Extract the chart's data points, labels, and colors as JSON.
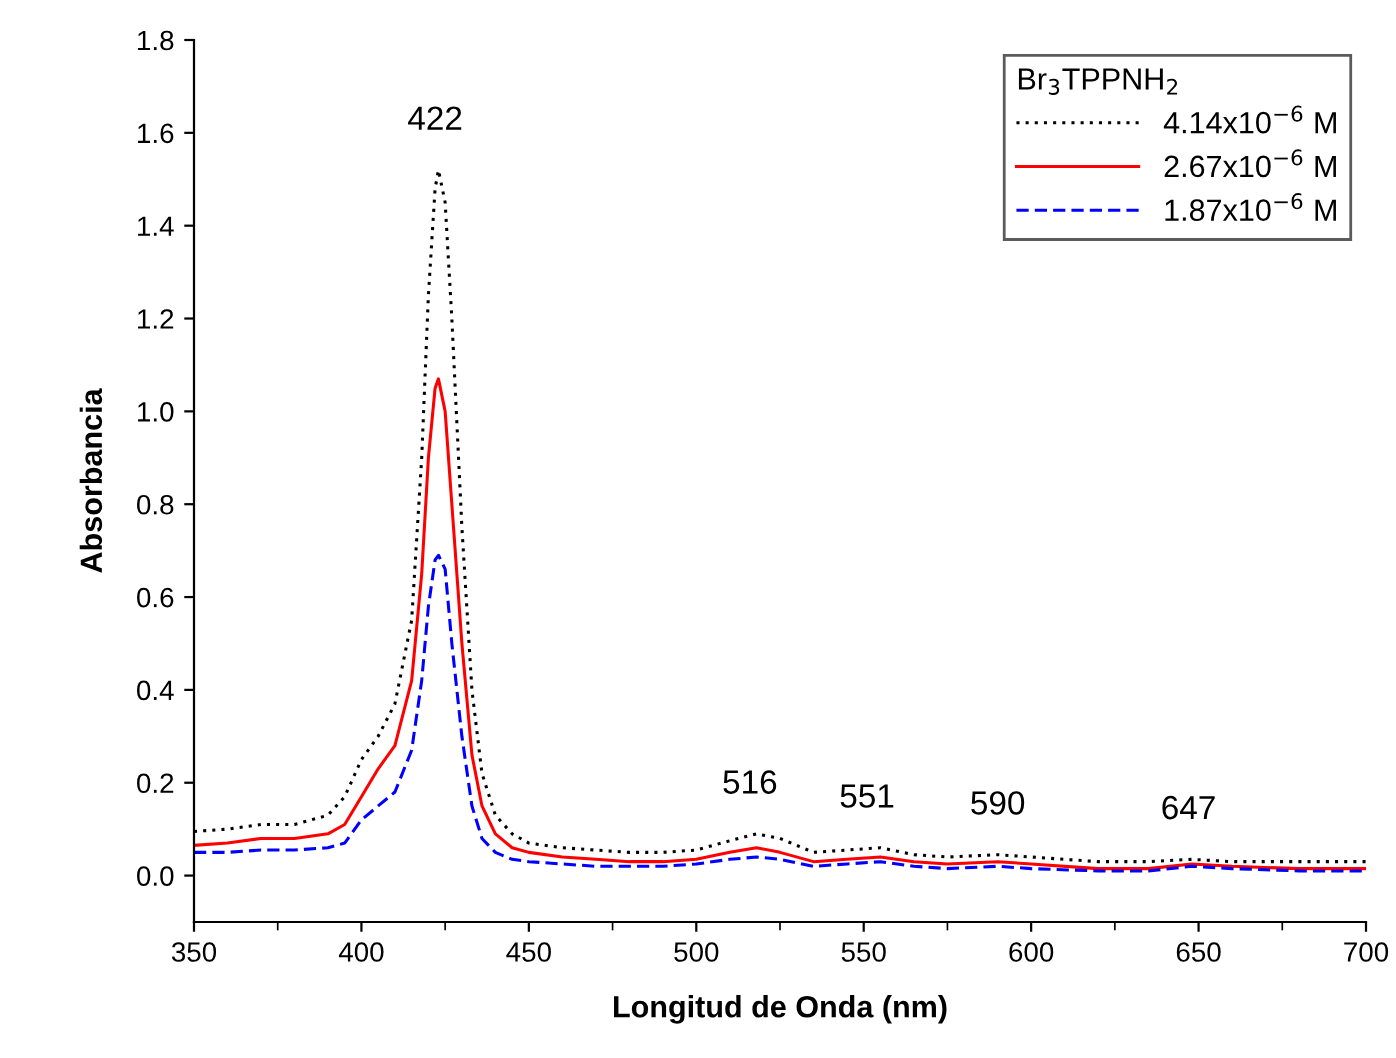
{
  "chart_data": {
    "type": "line",
    "xlabel": "Longitud de Onda (nm)",
    "ylabel": "Absorbancia",
    "legend_title": "Br$_{3}$TPPNH$_{2}$",
    "legend": "top right",
    "grid": false,
    "xlim": [
      350,
      700
    ],
    "xticks": [
      350,
      400,
      450,
      500,
      550,
      600,
      650,
      700
    ],
    "ylim": [
      -0.1,
      1.8
    ],
    "yticks": [
      {
        "value": 0,
        "label": "0.0"
      },
      {
        "value": 0.2,
        "label": "0.2"
      },
      {
        "value": 0.4,
        "label": "0.4"
      },
      {
        "value": 0.6,
        "label": "0.6"
      },
      {
        "value": 0.8,
        "label": "0.8"
      },
      {
        "value": 1.0,
        "label": "1.0"
      },
      {
        "value": 1.2,
        "label": "1.2"
      },
      {
        "value": 1.4,
        "label": "1.4"
      },
      {
        "value": 1.6,
        "label": "1.6"
      },
      {
        "value": 1.8,
        "label": "1.8"
      }
    ],
    "x": [
      350,
      360,
      370,
      380,
      390,
      395,
      400,
      405,
      410,
      415,
      418,
      420,
      422,
      423,
      425,
      427,
      430,
      433,
      436,
      440,
      445,
      450,
      460,
      470,
      480,
      490,
      500,
      510,
      518,
      525,
      535,
      545,
      555,
      565,
      575,
      590,
      600,
      620,
      635,
      648,
      660,
      680,
      700
    ],
    "series": [
      {
        "name": "4.14x10$^{−6}$ M",
        "color": "#000000",
        "line_style": "dotted",
        "values": [
          0.095,
          0.1,
          0.11,
          0.11,
          0.13,
          0.17,
          0.25,
          0.3,
          0.37,
          0.55,
          0.9,
          1.25,
          1.48,
          1.52,
          1.45,
          1.2,
          0.75,
          0.4,
          0.22,
          0.13,
          0.09,
          0.07,
          0.06,
          0.055,
          0.05,
          0.05,
          0.055,
          0.075,
          0.09,
          0.08,
          0.05,
          0.055,
          0.06,
          0.045,
          0.04,
          0.045,
          0.04,
          0.03,
          0.03,
          0.035,
          0.03,
          0.03,
          0.03
        ]
      },
      {
        "name": "2.67x10$^{−6}$ M",
        "color": "#ff0000",
        "line_style": "solid",
        "values": [
          0.065,
          0.07,
          0.08,
          0.08,
          0.09,
          0.11,
          0.17,
          0.23,
          0.28,
          0.42,
          0.65,
          0.9,
          1.05,
          1.07,
          1.0,
          0.8,
          0.5,
          0.26,
          0.15,
          0.09,
          0.06,
          0.05,
          0.04,
          0.035,
          0.03,
          0.03,
          0.035,
          0.05,
          0.06,
          0.05,
          0.03,
          0.035,
          0.04,
          0.03,
          0.025,
          0.03,
          0.025,
          0.015,
          0.015,
          0.025,
          0.02,
          0.015,
          0.015
        ]
      },
      {
        "name": "1.87x10$^{−6}$ M",
        "color": "#0000ff",
        "line_style": "dashed",
        "values": [
          0.05,
          0.05,
          0.055,
          0.055,
          0.06,
          0.07,
          0.12,
          0.15,
          0.18,
          0.27,
          0.42,
          0.58,
          0.68,
          0.69,
          0.66,
          0.5,
          0.3,
          0.15,
          0.08,
          0.05,
          0.035,
          0.03,
          0.025,
          0.02,
          0.02,
          0.02,
          0.025,
          0.035,
          0.04,
          0.035,
          0.02,
          0.025,
          0.03,
          0.02,
          0.015,
          0.02,
          0.015,
          0.01,
          0.01,
          0.02,
          0.015,
          0.01,
          0.01
        ]
      }
    ],
    "annotations": [
      {
        "text": "422",
        "x": 422,
        "y": 1.52
      },
      {
        "text": "516",
        "x": 516,
        "y": 0.09
      },
      {
        "text": "551",
        "x": 551,
        "y": 0.06
      },
      {
        "text": "590",
        "x": 590,
        "y": 0.045
      },
      {
        "text": "647",
        "x": 647,
        "y": 0.035
      }
    ]
  }
}
